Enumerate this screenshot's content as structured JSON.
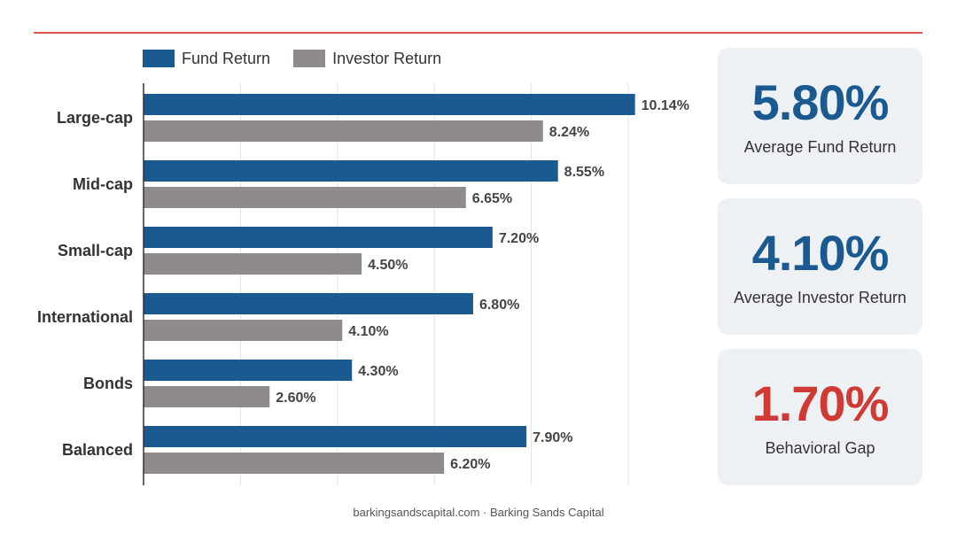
{
  "colors": {
    "fund": "#1a5a91",
    "investor": "#8e8b8a",
    "accent_red": "#cf3b34",
    "stat_blue": "#1a5a91",
    "grid": "#e4e4e4",
    "axis": "#333333"
  },
  "chart_data": {
    "type": "bar",
    "orientation": "horizontal",
    "categories": [
      "Large-cap",
      "Mid-cap",
      "Small-cap",
      "International",
      "Bonds",
      "Balanced"
    ],
    "series": [
      {
        "name": "Fund Return",
        "values": [
          10.14,
          8.55,
          7.2,
          6.8,
          4.3,
          7.9
        ],
        "labels": [
          "10.14%",
          "8.55%",
          "7.20%",
          "6.80%",
          "4.30%",
          "7.90%"
        ]
      },
      {
        "name": "Investor Return",
        "values": [
          8.24,
          6.65,
          4.5,
          4.1,
          2.6,
          6.2
        ],
        "labels": [
          "8.24%",
          "6.65%",
          "4.50%",
          "4.10%",
          "2.60%",
          "6.20%"
        ]
      }
    ],
    "xlim": [
      0,
      11
    ],
    "grid": true,
    "legend": "top-left"
  },
  "stats": [
    {
      "value": "5.80%",
      "label": "Average Fund Return",
      "color": "#1a5a91"
    },
    {
      "value": "4.10%",
      "label": "Average Investor Return",
      "color": "#1a5a91"
    },
    {
      "value": "1.70%",
      "label": "Behavioral Gap",
      "color": "#cf3b34"
    }
  ],
  "footer": "barkingsandscapital.com · Barking Sands Capital"
}
